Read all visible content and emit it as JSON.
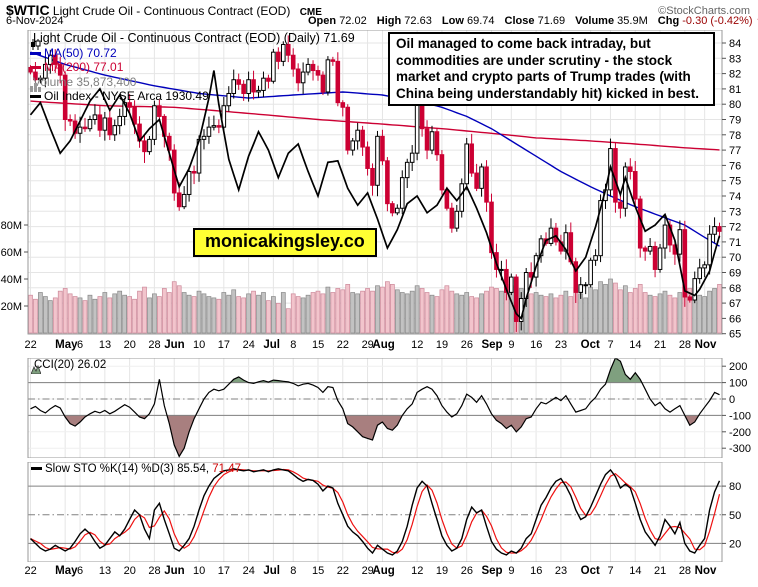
{
  "header": {
    "symbol": "$WTIC",
    "title": "Light Crude Oil - Continuous Contract (EOD)",
    "exchange": "CME",
    "credit": "©StockCharts.com",
    "date": "6-Nov-2024",
    "quote": {
      "open_label": "Open",
      "open": "72.02",
      "high_label": "High",
      "high": "72.63",
      "low_label": "Low",
      "low": "69.74",
      "close_label": "Close",
      "close": "71.69",
      "volume_label": "Volume",
      "volume": "35.9M",
      "chg_label": "Chg",
      "chg": "-0.30 (-0.42%)",
      "arrow": "▼"
    }
  },
  "main": {
    "legend": {
      "title": "Light Crude Oil - Continuous Contract (EOD) (Daily) 71.69",
      "ma50": "MA(50) 70.72",
      "ma200": "MA(200) 77.01",
      "volume": "Volume 35,873,400",
      "overlay": "Oil Index - NYSE Arca 1930.49"
    },
    "annotation": "Oil managed to come back intraday, but commodities are under scrutiny - the stock market and crypto parts of Trump trades (with China being understandably hit) kicked in best.",
    "watermark": "monicakingsley.co",
    "volume_axis": [
      "80M",
      "60M",
      "40M",
      "20M"
    ]
  },
  "cci": {
    "legend": "CCI(20) 26.02"
  },
  "sto": {
    "legend_text": "Slow STO %K(14) %D(3) 85.54,",
    "legend_red": "71.47"
  },
  "colors": {
    "candle_down": "#cc0033",
    "candle_up_fill": "#ffffff",
    "candle_up_stroke": "#000000",
    "vol_down_fill": "#f2c4cc",
    "vol_down_stroke": "#cc8899",
    "vol_up_fill": "#c2c2c2",
    "vol_up_stroke": "#888888",
    "ma50": "#0000bb",
    "ma200": "#cc0033",
    "overlay_line": "#000000",
    "cci_fill_high": "#7fa07f",
    "cci_fill_low": "#a87f7f",
    "sto_k": "#000000",
    "sto_d": "#ee1111",
    "grid": "#e5e5e5",
    "ref": "#808080",
    "border": "#999999",
    "accent_yellow": "#ffff33"
  },
  "chart_data": {
    "main": {
      "type": "candlestick",
      "title": "Light Crude Oil - Continuous Contract (EOD) (Daily)",
      "ylim": [
        65,
        84.8
      ],
      "y_axis": [
        84,
        83,
        82,
        81,
        80,
        79,
        78,
        77,
        76,
        75,
        74,
        73,
        72,
        71,
        70,
        69,
        68,
        67,
        66,
        65
      ],
      "closes": [
        82.1,
        81.6,
        81.7,
        82.6,
        83.2,
        82.6,
        81.9,
        79.0,
        78.9,
        78.1,
        78.5,
        78.4,
        79.0,
        79.3,
        78.3,
        79.1,
        78.0,
        78.6,
        79.2,
        80.1,
        79.8,
        78.7,
        77.6,
        76.9,
        77.7,
        79.9,
        79.2,
        77.9,
        77.0,
        74.2,
        73.3,
        74.1,
        75.6,
        75.5,
        77.7,
        77.9,
        78.5,
        78.6,
        78.5,
        79.9,
        80.7,
        81.6,
        81.3,
        80.7,
        81.6,
        80.8,
        80.9,
        81.7,
        81.5,
        83.4,
        82.8,
        83.9,
        83.2,
        82.3,
        81.4,
        82.1,
        82.6,
        82.2,
        81.9,
        80.8,
        82.9,
        82.8,
        80.1,
        79.8,
        77.0,
        77.6,
        78.3,
        77.2,
        75.8,
        74.7,
        77.9,
        76.3,
        73.5,
        72.9,
        73.2,
        75.2,
        76.2,
        76.8,
        80.1,
        78.4,
        77.0,
        78.2,
        76.7,
        74.4,
        73.2,
        71.9,
        73.0,
        74.8,
        77.4,
        75.5,
        74.5,
        75.9,
        73.6,
        70.3,
        69.2,
        69.2,
        67.7,
        68.7,
        65.8,
        67.3,
        69.0,
        68.7,
        70.1,
        71.2,
        70.9,
        71.9,
        71.0,
        70.4,
        71.6,
        69.7,
        67.7,
        68.2,
        68.2,
        69.8,
        70.1,
        73.7,
        74.4,
        77.1,
        73.6,
        73.2,
        75.9,
        75.6,
        73.8,
        70.6,
        70.4,
        70.7,
        69.2,
        70.6,
        72.1,
        70.8,
        70.2,
        71.8,
        67.4,
        67.2,
        68.6,
        69.3,
        69.5,
        71.5,
        72.0,
        71.69
      ],
      "volumes_m": [
        28,
        25,
        30,
        27,
        24,
        26,
        31,
        33,
        29,
        27,
        26,
        24,
        28,
        25,
        27,
        30,
        26,
        29,
        31,
        28,
        27,
        25,
        31,
        34,
        26,
        29,
        27,
        33,
        30,
        38,
        35,
        30,
        28,
        27,
        31,
        29,
        27,
        26,
        25,
        30,
        28,
        32,
        27,
        26,
        29,
        31,
        28,
        30,
        24,
        27,
        22,
        30,
        18,
        29,
        27,
        26,
        28,
        30,
        31,
        29,
        34,
        30,
        33,
        32,
        36,
        30,
        29,
        31,
        33,
        31,
        35,
        34,
        38,
        36,
        32,
        30,
        29,
        31,
        35,
        33,
        30,
        28,
        27,
        32,
        35,
        31,
        29,
        28,
        30,
        27,
        26,
        29,
        31,
        34,
        33,
        31,
        36,
        35,
        40,
        33,
        31,
        29,
        30,
        28,
        27,
        29,
        26,
        28,
        31,
        27,
        33,
        29,
        26,
        34,
        32,
        38,
        36,
        40,
        37,
        32,
        35,
        30,
        33,
        36,
        30,
        28,
        27,
        29,
        31,
        28,
        26,
        30,
        39,
        33,
        30,
        28,
        27,
        31,
        33,
        36
      ],
      "ma50_anchors": [
        [
          0,
          83.4
        ],
        [
          7,
          82.6
        ],
        [
          15,
          81.9
        ],
        [
          25,
          81.2
        ],
        [
          34,
          80.7
        ],
        [
          44,
          80.4
        ],
        [
          53,
          80.6
        ],
        [
          63,
          80.8
        ],
        [
          71,
          80.6
        ],
        [
          78,
          80.2
        ],
        [
          83,
          79.8
        ],
        [
          88,
          79.2
        ],
        [
          93,
          78.4
        ],
        [
          97,
          77.6
        ],
        [
          102,
          76.6
        ],
        [
          107,
          75.6
        ],
        [
          113,
          74.6
        ],
        [
          117,
          74.0
        ],
        [
          122,
          73.3
        ],
        [
          127,
          72.7
        ],
        [
          132,
          72.1
        ],
        [
          136,
          71.3
        ],
        [
          139,
          70.72
        ]
      ],
      "ma200_anchors": [
        [
          0,
          80.2
        ],
        [
          15,
          79.9
        ],
        [
          29,
          79.8
        ],
        [
          44,
          79.4
        ],
        [
          58,
          79.0
        ],
        [
          71,
          78.7
        ],
        [
          83,
          78.4
        ],
        [
          93,
          78.1
        ],
        [
          102,
          77.8
        ],
        [
          113,
          77.6
        ],
        [
          122,
          77.4
        ],
        [
          132,
          77.15
        ],
        [
          139,
          77.01
        ]
      ],
      "overlay_anchors": [
        [
          0,
          79.3
        ],
        [
          2,
          80.1
        ],
        [
          4,
          78.4
        ],
        [
          6,
          76.8
        ],
        [
          8,
          77.6
        ],
        [
          10,
          78.9
        ],
        [
          12,
          80.2
        ],
        [
          14,
          81.0
        ],
        [
          16,
          79.6
        ],
        [
          18,
          80.6
        ],
        [
          20,
          79.4
        ],
        [
          22,
          77.6
        ],
        [
          24,
          78.4
        ],
        [
          26,
          79.0
        ],
        [
          28,
          76.8
        ],
        [
          30,
          74.6
        ],
        [
          32,
          75.8
        ],
        [
          34,
          77.6
        ],
        [
          36,
          80.4
        ],
        [
          37,
          82.2
        ],
        [
          38,
          80.0
        ],
        [
          40,
          76.4
        ],
        [
          42,
          74.4
        ],
        [
          44,
          76.6
        ],
        [
          46,
          78.2
        ],
        [
          48,
          77.0
        ],
        [
          50,
          75.2
        ],
        [
          52,
          76.8
        ],
        [
          54,
          77.4
        ],
        [
          56,
          75.6
        ],
        [
          58,
          74.0
        ],
        [
          60,
          76.2
        ],
        [
          62,
          76.3
        ],
        [
          64,
          74.5
        ],
        [
          66,
          73.4
        ],
        [
          68,
          74.2
        ],
        [
          70,
          72.5
        ],
        [
          72,
          70.6
        ],
        [
          74,
          71.8
        ],
        [
          76,
          73.5
        ],
        [
          78,
          74.0
        ],
        [
          80,
          72.9
        ],
        [
          82,
          73.4
        ],
        [
          84,
          74.5
        ],
        [
          86,
          73.7
        ],
        [
          88,
          74.6
        ],
        [
          90,
          73.2
        ],
        [
          92,
          71.6
        ],
        [
          94,
          69.6
        ],
        [
          96,
          67.9
        ],
        [
          98,
          66.3
        ],
        [
          99,
          66.0
        ],
        [
          100,
          67.3
        ],
        [
          102,
          69.4
        ],
        [
          104,
          71.1
        ],
        [
          106,
          71.4
        ],
        [
          108,
          70.5
        ],
        [
          110,
          69.1
        ],
        [
          112,
          70.0
        ],
        [
          114,
          72.0
        ],
        [
          116,
          74.4
        ],
        [
          117,
          75.9
        ],
        [
          118,
          75.0
        ],
        [
          119,
          74.1
        ],
        [
          120,
          75.2
        ],
        [
          122,
          73.3
        ],
        [
          124,
          71.7
        ],
        [
          126,
          72.1
        ],
        [
          128,
          72.8
        ],
        [
          130,
          71.1
        ],
        [
          132,
          67.8
        ],
        [
          134,
          67.5
        ],
        [
          135,
          67.9
        ],
        [
          137,
          69.1
        ],
        [
          138,
          70.3
        ],
        [
          139,
          71.4
        ]
      ]
    },
    "x_axis": {
      "labels": [
        {
          "t": "22",
          "i": 0
        },
        {
          "t": "May",
          "i": 7,
          "m": 1
        },
        {
          "t": "6",
          "i": 10
        },
        {
          "t": "13",
          "i": 15
        },
        {
          "t": "20",
          "i": 20
        },
        {
          "t": "28",
          "i": 25
        },
        {
          "t": "Jun",
          "i": 29,
          "m": 1
        },
        {
          "t": "10",
          "i": 34
        },
        {
          "t": "17",
          "i": 39
        },
        {
          "t": "24",
          "i": 44
        },
        {
          "t": "Jul",
          "i": 49,
          "m": 1
        },
        {
          "t": "8",
          "i": 53
        },
        {
          "t": "15",
          "i": 58
        },
        {
          "t": "22",
          "i": 63
        },
        {
          "t": "29",
          "i": 68
        },
        {
          "t": "Aug",
          "i": 71,
          "m": 1
        },
        {
          "t": "12",
          "i": 78
        },
        {
          "t": "19",
          "i": 83
        },
        {
          "t": "26",
          "i": 88
        },
        {
          "t": "Sep",
          "i": 93,
          "m": 1
        },
        {
          "t": "9",
          "i": 97
        },
        {
          "t": "16",
          "i": 102
        },
        {
          "t": "23",
          "i": 107
        },
        {
          "t": "Oct",
          "i": 113,
          "m": 1
        },
        {
          "t": "7",
          "i": 117
        },
        {
          "t": "14",
          "i": 122
        },
        {
          "t": "21",
          "i": 127
        },
        {
          "t": "28",
          "i": 132
        },
        {
          "t": "Nov",
          "i": 136,
          "m": 1
        }
      ]
    },
    "cci": {
      "type": "line",
      "name": "CCI(20)",
      "current": 26.02,
      "ylim": [
        -360,
        250
      ],
      "y_axis": [
        200,
        100,
        0,
        -100,
        -200,
        -300
      ],
      "ref_lines": [
        100,
        -100
      ],
      "mid_line": 0,
      "values": [
        -60,
        -45,
        -70,
        -85,
        -60,
        -40,
        -55,
        -110,
        -150,
        -165,
        -140,
        -110,
        -90,
        -75,
        -85,
        -70,
        -90,
        -75,
        -55,
        -35,
        -50,
        -80,
        -110,
        -120,
        -90,
        -30,
        120,
        -40,
        -150,
        -280,
        -350,
        -300,
        -200,
        -120,
        -60,
        0,
        40,
        60,
        50,
        60,
        90,
        120,
        135,
        115,
        100,
        95,
        105,
        112,
        103,
        115,
        112,
        108,
        104,
        95,
        80,
        90,
        95,
        85,
        70,
        40,
        75,
        70,
        -10,
        -60,
        -150,
        -170,
        -200,
        -230,
        -240,
        -250,
        -160,
        -140,
        -180,
        -190,
        -160,
        -100,
        -60,
        -30,
        40,
        60,
        75,
        60,
        20,
        -40,
        -80,
        -110,
        -90,
        -40,
        30,
        10,
        -20,
        20,
        -30,
        -90,
        -130,
        -150,
        -180,
        -160,
        -200,
        -170,
        -120,
        -110,
        -60,
        -20,
        -30,
        -10,
        10,
        -10,
        20,
        -30,
        -80,
        -70,
        -60,
        -20,
        10,
        60,
        90,
        180,
        250,
        230,
        150,
        120,
        160,
        120,
        60,
        0,
        -40,
        -20,
        -60,
        -80,
        -60,
        -40,
        -100,
        -160,
        -140,
        -90,
        -50,
        -10,
        40,
        26
      ]
    },
    "sto": {
      "type": "line",
      "name": "Slow STO %K(14) %D(3)",
      "k_current": 85.54,
      "d_current": 71.47,
      "d_period": 3,
      "ylim": [
        0,
        100
      ],
      "y_axis": [
        80,
        50,
        20
      ],
      "ref_lines": [
        80,
        20
      ],
      "mid_line": 50,
      "k_values": [
        25,
        20,
        15,
        12,
        14,
        18,
        15,
        12,
        15,
        22,
        30,
        35,
        30,
        22,
        15,
        18,
        25,
        32,
        28,
        35,
        45,
        55,
        50,
        35,
        25,
        55,
        62,
        45,
        30,
        15,
        12,
        18,
        25,
        38,
        55,
        70,
        80,
        88,
        92,
        96,
        97,
        98,
        97,
        96,
        97,
        95,
        96,
        97,
        95,
        97,
        98,
        97,
        96,
        92,
        88,
        85,
        87,
        86,
        82,
        75,
        80,
        78,
        62,
        50,
        38,
        32,
        28,
        22,
        15,
        10,
        18,
        14,
        10,
        8,
        12,
        22,
        38,
        60,
        78,
        85,
        80,
        62,
        45,
        28,
        18,
        12,
        15,
        25,
        45,
        58,
        52,
        55,
        38,
        22,
        14,
        10,
        8,
        12,
        10,
        15,
        25,
        30,
        45,
        60,
        68,
        78,
        85,
        88,
        80,
        70,
        55,
        45,
        48,
        58,
        70,
        82,
        92,
        97,
        90,
        78,
        82,
        78,
        62,
        45,
        32,
        25,
        18,
        28,
        45,
        38,
        30,
        42,
        20,
        12,
        10,
        18,
        25,
        55,
        74,
        85.54
      ]
    }
  }
}
